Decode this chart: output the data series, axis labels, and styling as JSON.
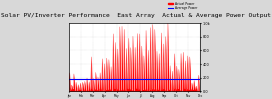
{
  "title": "Solar PV/Inverter Performance  East Array  Actual & Average Power Output",
  "bg_color": "#d8d8d8",
  "plot_bg_color": "#ffffff",
  "grid_color": "#aaaaaa",
  "bar_color": "#ff0000",
  "avg_line_color": "#0000ff",
  "avg_line_value": 0.18,
  "ylim": [
    0.0,
    1.0
  ],
  "ylabel_right": [
    "1.0k",
    "0.8k",
    "0.6k",
    "0.4k",
    "0.2k",
    "0.0"
  ],
  "num_points": 200,
  "title_fontsize": 4.5,
  "legend_labels": [
    "Actual Power",
    "Average Power"
  ],
  "legend_colors": [
    "#ff0000",
    "#0000ff"
  ]
}
